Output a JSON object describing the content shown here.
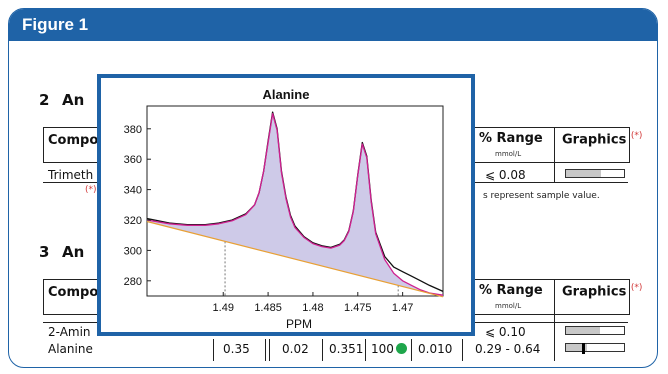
{
  "header": {
    "title": "Figure 1"
  },
  "doc": {
    "section2": {
      "number": "2",
      "title": "An"
    },
    "section3": {
      "number": "3",
      "title": "An"
    },
    "table2": {
      "col_compound": "Compo",
      "col_range": "% Range",
      "col_range_unit": "mmol/L",
      "col_graphics": "Graphics",
      "star": "(*)",
      "row1_name": "Trimeth",
      "row1_range": "⩽ 0.08",
      "row1_fill": 0.6,
      "note_star": "(*)",
      "note_text": "s represent sample value."
    },
    "table3": {
      "col_compound": "Compo",
      "col_range": "% Range",
      "col_range_unit": "mmol/L",
      "col_graphics": "Graphics",
      "star": "(*)",
      "row1_name": "2-Amin",
      "row1_range": "⩽ 0.10",
      "row1_fill": 0.58,
      "row2_name": "Alanine",
      "row2_v1": "0.35",
      "row2_v2": "0.02",
      "row2_v3": "0.351",
      "row2_v4": "100",
      "row2_v5": "0.010",
      "row2_range": "0.29 - 0.64",
      "row2_fill": 0.36,
      "row2_marker": 0.28
    },
    "red_marker": "≈",
    "status_color": "#1ea64b"
  },
  "chart_data": {
    "type": "line",
    "title": "Alanine",
    "xlabel": "PPM",
    "ylabel": "",
    "xlim": [
      1.4985,
      1.4655
    ],
    "ylim": [
      270,
      395
    ],
    "xticks": [
      "1.49",
      "1.485",
      "1.48",
      "1.475",
      "1.47"
    ],
    "xtick_values": [
      1.49,
      1.485,
      1.48,
      1.475,
      1.47
    ],
    "yticks": [
      "280",
      "300",
      "320",
      "340",
      "360",
      "380"
    ],
    "ytick_values": [
      280,
      300,
      320,
      340,
      360,
      380
    ],
    "dashed_x": [
      1.4898,
      1.4705
    ],
    "series": [
      {
        "color": "#111111",
        "x": [
          1.4985,
          1.496,
          1.494,
          1.492,
          1.4905,
          1.489,
          1.4875,
          1.4865,
          1.486,
          1.4855,
          1.485,
          1.4845,
          1.484,
          1.4835,
          1.483,
          1.4825,
          1.482,
          1.481,
          1.48,
          1.479,
          1.478,
          1.477,
          1.4765,
          1.476,
          1.4755,
          1.475,
          1.4745,
          1.474,
          1.4735,
          1.473,
          1.472,
          1.471,
          1.47,
          1.469,
          1.468,
          1.467,
          1.4655
        ],
        "y": [
          321,
          318,
          317,
          317,
          318,
          320,
          324,
          330,
          338,
          352,
          372,
          391,
          380,
          352,
          335,
          323,
          316,
          309,
          305,
          303,
          302,
          304,
          307,
          313,
          326,
          350,
          371,
          362,
          333,
          312,
          296,
          289,
          286,
          283,
          280,
          277,
          273
        ]
      },
      {
        "color": "#d02090",
        "x": [
          1.4985,
          1.496,
          1.494,
          1.492,
          1.4905,
          1.489,
          1.4875,
          1.4865,
          1.486,
          1.4855,
          1.485,
          1.4845,
          1.484,
          1.4835,
          1.483,
          1.4825,
          1.482,
          1.481,
          1.48,
          1.479,
          1.478,
          1.477,
          1.4765,
          1.476,
          1.4755,
          1.475,
          1.4745,
          1.474,
          1.4735,
          1.473,
          1.472,
          1.471,
          1.47,
          1.469,
          1.468,
          1.467,
          1.4655
        ],
        "y": [
          320,
          317.5,
          316.5,
          316.5,
          317.5,
          319.5,
          323.5,
          330,
          338,
          352,
          371,
          390,
          379,
          351,
          334,
          322,
          315,
          308.5,
          304.5,
          302.5,
          301.5,
          303.5,
          306.5,
          312.5,
          325.5,
          349.5,
          370,
          361,
          332,
          311,
          294,
          285,
          280,
          277,
          274,
          272,
          270.5
        ]
      },
      {
        "color": "#e8a035",
        "x": [
          1.4985,
          1.4655
        ],
        "y": [
          319,
          269.5
        ]
      }
    ]
  }
}
